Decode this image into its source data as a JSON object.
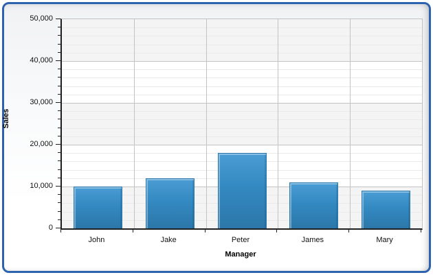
{
  "window": {
    "background_color": "#ffffff",
    "frame_border_color": "#2d62ae",
    "frame_fill_top": "#f1f2f4",
    "frame_fill_bottom": "#ffffff"
  },
  "chart_data": {
    "type": "bar",
    "title": "",
    "categories": [
      "John",
      "Jake",
      "Peter",
      "James",
      "Mary"
    ],
    "values": [
      10000,
      12000,
      18000,
      11000,
      9000
    ],
    "series_name": "Sales",
    "xlabel": "Manager",
    "ylabel": "Sales",
    "ylim": [
      0,
      50000
    ],
    "y_major_step": 10000,
    "y_minor_step": 2000,
    "y_tick_labels": [
      "0",
      "10,000",
      "20,000",
      "30,000",
      "40,000",
      "50,000"
    ],
    "legend": "none",
    "grid": {
      "horizontal_major": true,
      "horizontal_minor": true,
      "vertical_category_lines": true,
      "interlaced_bands": true
    },
    "colors": {
      "bar_fill_top": "#4a9dd4",
      "bar_fill_bottom": "#2c77a9",
      "bar_border": "#2b77ab",
      "major_gridline": "#c2c2c2",
      "minor_gridline": "#eaeaea",
      "band_fill": "#f4f4f4",
      "axis_line": "#1f1f1f",
      "text": "#111111"
    }
  }
}
